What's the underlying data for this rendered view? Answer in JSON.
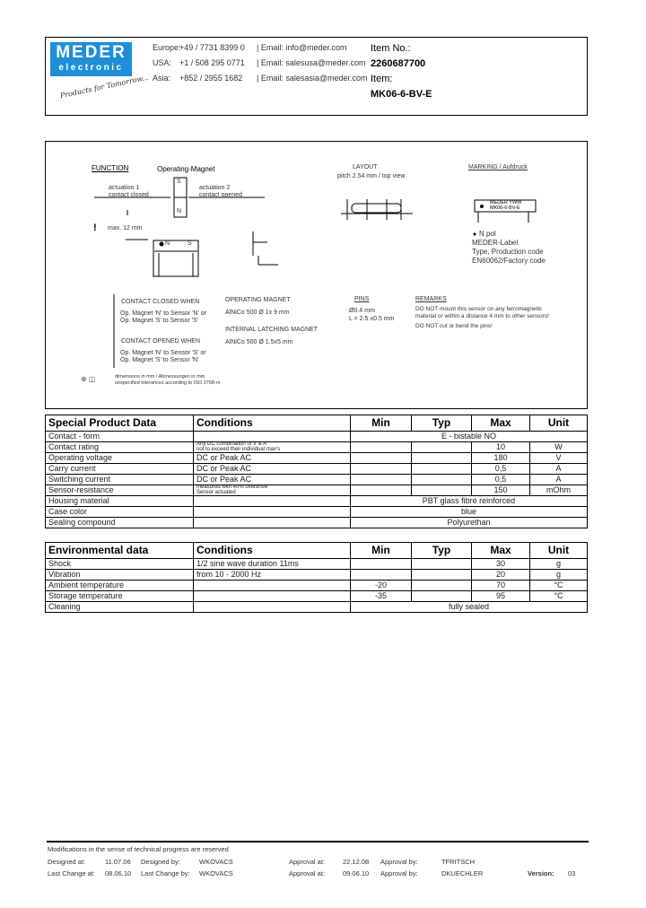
{
  "header": {
    "logo": {
      "line1": "MEDER",
      "line2": "electronic",
      "slogan": "Products for Tomorrow..."
    },
    "contacts": [
      {
        "region": "Europe:",
        "phone": "+49 / 7731 8399 0",
        "email": "| Email: info@meder.com"
      },
      {
        "region": "USA:",
        "phone": "+1 / 508 295 0771",
        "email": "| Email: salesusa@meder.com"
      },
      {
        "region": "Asia:",
        "phone": "+852 / 2955 1682",
        "email": "| Email: salesasia@meder.com"
      }
    ],
    "item_no_label": "Item No.:",
    "item_no": "2260687700",
    "item_label": "Item:",
    "item": "MK06-6-BV-E"
  },
  "drawing": {
    "function_title": "FUNCTION",
    "operating_magnet": "Operating-Magnet",
    "actuation1": [
      "actuation 1",
      "contact closed"
    ],
    "actuation2": [
      "actuation 2",
      "contact opened"
    ],
    "pole_s": "S",
    "pole_n": "N",
    "max_distance": "max. 12 mm",
    "layout_title": "LAYOUT",
    "layout_sub": "pitch 2.54 mm / top view",
    "marking_title": "MARKING / Aufdruck",
    "marking_label": [
      "MEDER  YWW",
      "MK06-6-BV-E"
    ],
    "marking_notes": [
      "N pol",
      "MEDER-Label",
      "Type, Production code",
      "EN60062/Factory code"
    ],
    "contact_closed_title": "CONTACT CLOSED WHEN",
    "contact_closed": [
      "Op. Magnet 'N' to Sensor 'N' or",
      "Op. Magnet 'S' to Sensor 'S'"
    ],
    "contact_opened_title": "CONTACT OPENED WHEN",
    "contact_opened": [
      "Op. Magnet 'N' to Sensor 'S' or",
      "Op. Magnet 'S' to Sensor 'N'"
    ],
    "op_magnet_title": "OPERATING MAGNET",
    "op_magnet": "AlNiCo 500 Ø 1x 9 mm",
    "latch_title": "INTERNAL LATCHING MAGNET",
    "latch": "AlNiCo 500 Ø 1.5x5 mm",
    "pins_title": "PINS",
    "pins": [
      "Ø0.4 mm",
      "L = 2.5 ±0.5 mm"
    ],
    "remarks_title": "REMARKS",
    "remarks": [
      "DO NOT mount this sensor on any ferromagnetic",
      "material or within a distance 4 mm to other sensors!",
      "DO NOT cut or bend the pins!"
    ],
    "tolerance": [
      "dimensions in mm / Abmessungen in mm",
      "unspecified tolerances according to ISO 2768-m"
    ]
  },
  "special": {
    "headers": [
      "Special Product Data",
      "Conditions",
      "Min",
      "Typ",
      "Max",
      "Unit"
    ],
    "rows": [
      {
        "name": "Contact - form",
        "span": "E - bistable NO"
      },
      {
        "name": "Contact rating",
        "cond": [
          "Any DC combination of V & A",
          "not to exceed their individual max's"
        ],
        "min": "",
        "typ": "",
        "max": "10",
        "unit": "W"
      },
      {
        "name": "Operating voltage",
        "cond": "DC or Peak AC",
        "min": "",
        "typ": "",
        "max": "180",
        "unit": "V"
      },
      {
        "name": "Carry current",
        "cond": "DC or Peak AC",
        "min": "",
        "typ": "",
        "max": "0,5",
        "unit": "A"
      },
      {
        "name": "Switching current",
        "cond": "DC or Peak AC",
        "min": "",
        "typ": "",
        "max": "0,5",
        "unit": "A"
      },
      {
        "name": "Sensor-resistance",
        "cond": [
          "measured with 40% overdrive",
          "Sensor actuated"
        ],
        "min": "",
        "typ": "",
        "max": "150",
        "unit": "mOhm"
      },
      {
        "name": "Housing material",
        "span": "PBT glass fibre reinforced"
      },
      {
        "name": "Case color",
        "span": "blue"
      },
      {
        "name": "Sealing compound",
        "span": "Polyurethan"
      }
    ]
  },
  "environmental": {
    "headers": [
      "Environmental data",
      "Conditions",
      "Min",
      "Typ",
      "Max",
      "Unit"
    ],
    "rows": [
      {
        "name": "Shock",
        "cond": "1/2 sine wave duration 11ms",
        "min": "",
        "typ": "",
        "max": "30",
        "unit": "g"
      },
      {
        "name": "Vibration",
        "cond": "from 10 - 2000 Hz",
        "min": "",
        "typ": "",
        "max": "20",
        "unit": "g"
      },
      {
        "name": "Ambient temperature",
        "cond": "",
        "min": "-20",
        "typ": "",
        "max": "70",
        "unit": "°C"
      },
      {
        "name": "Storage temperature",
        "cond": "",
        "min": "-35",
        "typ": "",
        "max": "95",
        "unit": "°C"
      },
      {
        "name": "Cleaning",
        "span": "fully sealed"
      }
    ]
  },
  "footer": {
    "note": "Modifications in the sense of technical progress are reserved",
    "designed_at_label": "Designed at:",
    "designed_at": "11.07.06",
    "designed_by_label": "Designed by:",
    "designed_by": "WKOVACS",
    "approval_at_label": "Approval at:",
    "approval_at": "22.12.08",
    "approval_by_label": "Approval by:",
    "approval_by": "TFRITSCH",
    "last_change_at_label": "Last Change at:",
    "last_change_at": "08.06.10",
    "last_change_by_label": "Last Change by:",
    "last_change_by": "WKOVACS",
    "approval2_at_label": "Approval at:",
    "approval2_at": "09.06.10",
    "approval2_by_label": "Approval by:",
    "approval2_by": "DKUECHLER",
    "version_label": "Version:",
    "version": "03"
  }
}
